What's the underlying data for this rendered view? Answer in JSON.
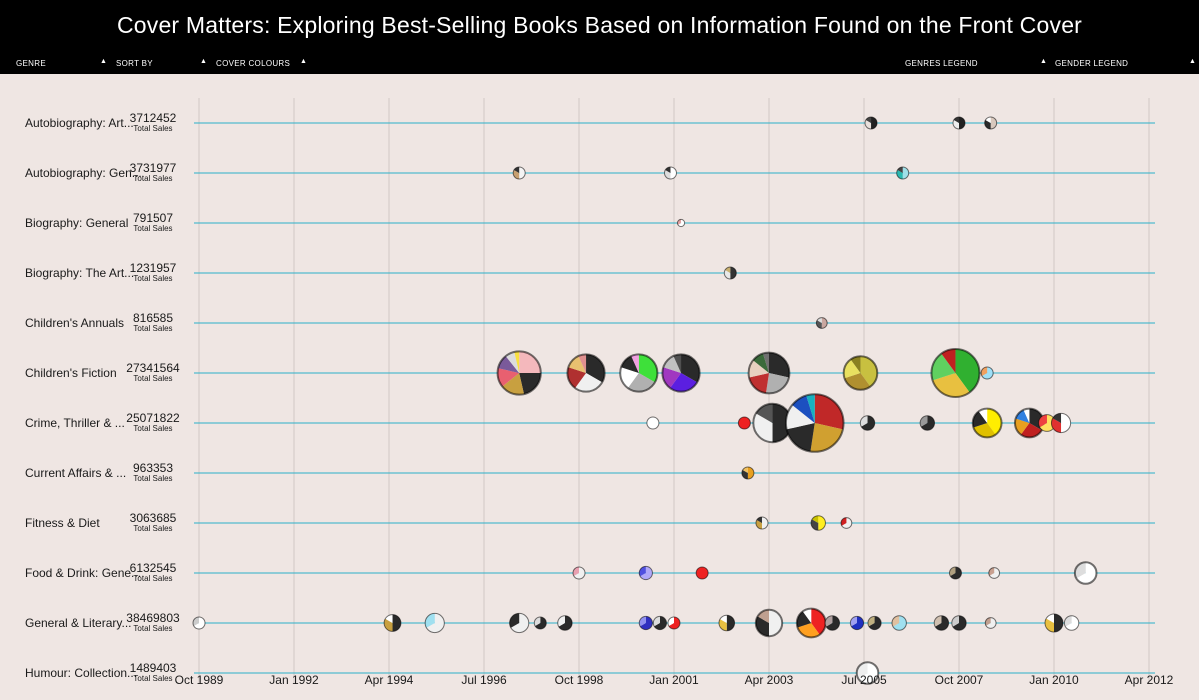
{
  "title": "Cover Matters: Exploring Best-Selling Books Based on Information Found on the Front Cover",
  "controls": {
    "genre": "GENRE",
    "sort_by": "SORT BY",
    "cover_colours": "COVER COLOURS",
    "genres_legend": "GENRES LEGEND",
    "gender_legend": "GENDER LEGEND",
    "arrow": "▲"
  },
  "chart_data": {
    "type": "scatter",
    "x_ticks": [
      "Oct 1989",
      "Jan 1992",
      "Apr 1994",
      "Jul 1996",
      "Oct 1998",
      "Jan 2001",
      "Apr 2003",
      "Jul 2005",
      "Oct 2007",
      "Jan 2010",
      "Apr 2012"
    ],
    "total_label": "Total Sales",
    "rows": [
      {
        "label": "Autobiography: Art...",
        "total": "3712452",
        "points": [
          {
            "date": "2005-09",
            "size": 1,
            "colors": [
              "#222",
              "#e8e0dc",
              "#444"
            ]
          },
          {
            "date": "2007-10",
            "size": 1,
            "colors": [
              "#222",
              "#eee",
              "#333"
            ]
          },
          {
            "date": "2008-07",
            "size": 1,
            "colors": [
              "#d8c8bd",
              "#2a2a2a",
              "#fff"
            ]
          }
        ]
      },
      {
        "label": "Autobiography: Gen...",
        "total": "3731977",
        "points": [
          {
            "date": "1997-05",
            "size": 1,
            "colors": [
              "#f4f4f4",
              "#c8a070",
              "#333"
            ]
          },
          {
            "date": "2000-12",
            "size": 1,
            "colors": [
              "#fff",
              "#ddd",
              "#333"
            ]
          },
          {
            "date": "2006-06",
            "size": 1,
            "colors": [
              "#9fe0e8",
              "#2bb8b0",
              "#444"
            ]
          }
        ]
      },
      {
        "label": "Biography: General",
        "total": "791507",
        "points": [
          {
            "date": "2001-03",
            "size": 0.6,
            "colors": [
              "#fff",
              "#e0a0a0"
            ]
          }
        ]
      },
      {
        "label": "Biography: The Art...",
        "total": "1231957",
        "points": [
          {
            "date": "2002-05",
            "size": 1,
            "colors": [
              "#333",
              "#e8e8e8",
              "#c8b070"
            ]
          }
        ]
      },
      {
        "label": "Children's Annuals",
        "total": "816585",
        "points": [
          {
            "date": "2004-07",
            "size": 0.9,
            "colors": [
              "#c9a7a0",
              "#555",
              "#ddd"
            ]
          }
        ]
      },
      {
        "label": "Children's Fiction",
        "total": "27341564",
        "points": [
          {
            "date": "1997-05",
            "size": 3.6,
            "colors": [
              "#f4b8bc",
              "#2a2a2a",
              "#c8a040",
              "#e86070",
              "#7a5a9a",
              "#dcdcdc",
              "#f8e040"
            ]
          },
          {
            "date": "1998-12",
            "size": 3.1,
            "colors": [
              "#2a2a2a",
              "#f0f0f0",
              "#b03030",
              "#e8c070",
              "#e09090"
            ]
          },
          {
            "date": "2000-03",
            "size": 3.1,
            "colors": [
              "#3ee03a",
              "#b0b0b0",
              "#ffffff",
              "#2a2a2a",
              "#f0a0e0"
            ]
          },
          {
            "date": "2001-03",
            "size": 3.1,
            "colors": [
              "#2a2a2a",
              "#5b1fe0",
              "#a038c0",
              "#c0c0c0",
              "#505050"
            ]
          },
          {
            "date": "2003-04",
            "size": 3.4,
            "colors": [
              "#2a2a2a",
              "#b0b0b0",
              "#c03030",
              "#e8d0c0",
              "#3a6a3a",
              "#707070"
            ]
          },
          {
            "date": "2005-06",
            "size": 2.8,
            "colors": [
              "#c8c040",
              "#b09030",
              "#e8e060",
              "#8a8020"
            ]
          },
          {
            "date": "2007-09",
            "size": 4.0,
            "colors": [
              "#30b030",
              "#e8c040",
              "#60d060",
              "#c02020"
            ]
          },
          {
            "date": "2008-06",
            "size": 1,
            "colors": [
              "#9fe0f8",
              "#f0a060"
            ]
          }
        ]
      },
      {
        "label": "Crime, Thriller & ...",
        "total": "25071822",
        "points": [
          {
            "date": "2000-07",
            "size": 1,
            "colors": [
              "#fff"
            ]
          },
          {
            "date": "2002-09",
            "size": 1,
            "colors": [
              "#ee2222"
            ]
          },
          {
            "date": "2003-05",
            "size": 3.2,
            "colors": [
              "#2a2a2a",
              "#f0f0f0",
              "#555"
            ]
          },
          {
            "date": "2004-05",
            "size": 4.8,
            "colors": [
              "#c02828",
              "#d0a030",
              "#2a2a2a",
              "#f0f0f0",
              "#1c50c0",
              "#18b0c0"
            ]
          },
          {
            "date": "2005-08",
            "size": 1.2,
            "colors": [
              "#2a2a2a",
              "#ddd"
            ]
          },
          {
            "date": "2007-01",
            "size": 1.2,
            "colors": [
              "#2a2a2a",
              "#999"
            ]
          },
          {
            "date": "2008-06",
            "size": 2.4,
            "colors": [
              "#ffee00",
              "#e0c000",
              "#2a2a2a",
              "#fff"
            ]
          },
          {
            "date": "2009-06",
            "size": 2.4,
            "colors": [
              "#2a2a2a",
              "#c02020",
              "#e8a020",
              "#3080e0",
              "#fff"
            ]
          },
          {
            "date": "2009-11",
            "size": 1.4,
            "colors": [
              "#ffe060",
              "#ee4040"
            ]
          },
          {
            "date": "2010-03",
            "size": 1.6,
            "colors": [
              "#fff",
              "#e03030",
              "#333"
            ]
          }
        ]
      },
      {
        "label": "Current Affairs & ...",
        "total": "963353",
        "points": [
          {
            "date": "2002-10",
            "size": 1,
            "colors": [
              "#e8a020",
              "#333",
              "#f0c060"
            ]
          }
        ]
      },
      {
        "label": "Fitness & Diet",
        "total": "3063685",
        "points": [
          {
            "date": "2003-02",
            "size": 1,
            "colors": [
              "#f0f0f0",
              "#c8a040",
              "#333"
            ]
          },
          {
            "date": "2004-06",
            "size": 1.2,
            "colors": [
              "#ffee20",
              "#444",
              "#c8c000"
            ]
          },
          {
            "date": "2005-02",
            "size": 0.9,
            "colors": [
              "#f0f0f0",
              "#d02020"
            ]
          }
        ]
      },
      {
        "label": "Food & Drink: Gene...",
        "total": "6132545",
        "points": [
          {
            "date": "1998-10",
            "size": 1,
            "colors": [
              "#f0f0f0",
              "#e8a0b0"
            ]
          },
          {
            "date": "2000-05",
            "size": 1.1,
            "colors": [
              "#b0a8f8",
              "#5050e0"
            ]
          },
          {
            "date": "2001-09",
            "size": 1,
            "colors": [
              "#ee2222"
            ]
          },
          {
            "date": "2007-09",
            "size": 1,
            "colors": [
              "#2a2a2a",
              "#b0a080"
            ]
          },
          {
            "date": "2008-08",
            "size": 0.9,
            "colors": [
              "#f0f0f0",
              "#c8a090"
            ]
          },
          {
            "date": "2010-10",
            "size": 1.8,
            "colors": [
              "#fff",
              "#ddd"
            ]
          }
        ]
      },
      {
        "label": "General & Literary...",
        "total": "38469803",
        "points": [
          {
            "date": "1989-10",
            "size": 1,
            "colors": [
              "#fff",
              "#ccc"
            ]
          },
          {
            "date": "1994-05",
            "size": 1.4,
            "colors": [
              "#2a2a2a",
              "#c8a040",
              "#fff"
            ]
          },
          {
            "date": "1995-05",
            "size": 1.6,
            "colors": [
              "#f0f0f0",
              "#9fe0f0"
            ]
          },
          {
            "date": "1997-05",
            "size": 1.6,
            "colors": [
              "#f0f0f0",
              "#2a2a2a"
            ]
          },
          {
            "date": "1997-11",
            "size": 1,
            "colors": [
              "#2a2a2a",
              "#ddd"
            ]
          },
          {
            "date": "1998-06",
            "size": 1.2,
            "colors": [
              "#2a2a2a",
              "#f0f0f0"
            ]
          },
          {
            "date": "2000-05",
            "size": 1.1,
            "colors": [
              "#3030c0",
              "#9090f0"
            ]
          },
          {
            "date": "2000-09",
            "size": 1.1,
            "colors": [
              "#2a2a2a",
              "#ddd"
            ]
          },
          {
            "date": "2001-01",
            "size": 1,
            "colors": [
              "#ee2222",
              "#fff"
            ]
          },
          {
            "date": "2002-04",
            "size": 1.3,
            "colors": [
              "#2a2a2a",
              "#e8c040",
              "#fff"
            ]
          },
          {
            "date": "2003-04",
            "size": 2.2,
            "colors": [
              "#f0f0f0",
              "#2a2a2a",
              "#c0a090"
            ]
          },
          {
            "date": "2004-04",
            "size": 2.4,
            "colors": [
              "#ee2222",
              "#ffa020",
              "#2a2a2a",
              "#fff"
            ]
          },
          {
            "date": "2004-10",
            "size": 1.2,
            "colors": [
              "#2a2a2a",
              "#b0a0a0"
            ]
          },
          {
            "date": "2005-05",
            "size": 1.1,
            "colors": [
              "#2030c0",
              "#a0a0f0"
            ]
          },
          {
            "date": "2005-10",
            "size": 1.1,
            "colors": [
              "#2a2a2a",
              "#c0b080"
            ]
          },
          {
            "date": "2006-05",
            "size": 1.2,
            "colors": [
              "#9fe0f0",
              "#e0c0a0"
            ]
          },
          {
            "date": "2007-05",
            "size": 1.2,
            "colors": [
              "#2a2a2a",
              "#d0c0b0"
            ]
          },
          {
            "date": "2007-10",
            "size": 1.2,
            "colors": [
              "#2a2a2a",
              "#ccc"
            ]
          },
          {
            "date": "2008-07",
            "size": 0.9,
            "colors": [
              "#f0f0f0",
              "#c0a090"
            ]
          },
          {
            "date": "2010-01",
            "size": 1.5,
            "colors": [
              "#2a2a2a",
              "#e8c040",
              "#fff"
            ]
          },
          {
            "date": "2010-06",
            "size": 1.2,
            "colors": [
              "#fff",
              "#ddd"
            ]
          }
        ]
      },
      {
        "label": "Humour: Collection...",
        "total": "1489403",
        "points": [
          {
            "date": "2005-08",
            "size": 1.8,
            "colors": [
              "#fff",
              "#eee"
            ]
          }
        ]
      }
    ]
  }
}
